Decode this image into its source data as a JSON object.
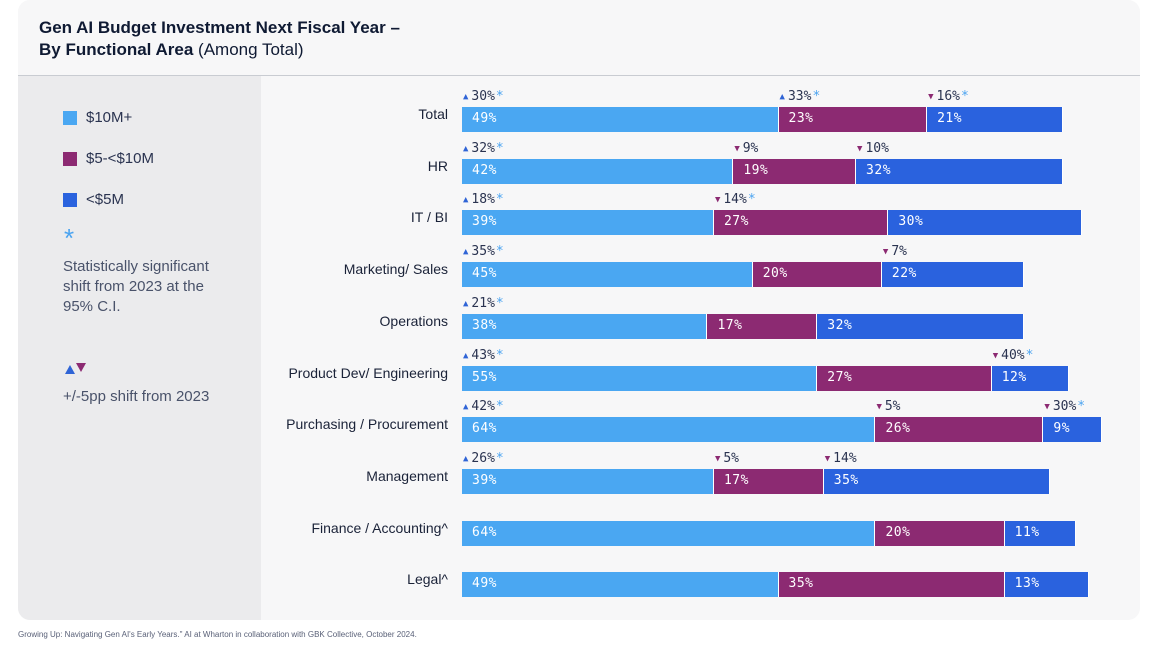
{
  "title": {
    "bold": "Gen AI Budget Investment Next Fiscal Year –",
    "bold2": "By Functional Area",
    "normal": "(Among Total)"
  },
  "legend": {
    "items": [
      {
        "label": "$10M+",
        "color": "#4aa7f2"
      },
      {
        "label": "$5-<$10M",
        "color": "#8c2a72"
      },
      {
        "label": "<$5M",
        "color": "#2a62de"
      }
    ],
    "star_symbol": "*",
    "star_note": "Statistically significant shift from 2023 at the 95% C.I.",
    "shift_note": "+/-5pp shift from 2023"
  },
  "chart_data": {
    "type": "bar",
    "orientation": "horizontal",
    "stacked": true,
    "series": [
      {
        "name": "$10M+",
        "color": "#4aa7f2",
        "values": [
          49,
          42,
          39,
          45,
          38,
          55,
          64,
          39,
          64,
          49
        ]
      },
      {
        "name": "$5-<$10M",
        "color": "#8c2a72",
        "values": [
          23,
          19,
          27,
          20,
          17,
          27,
          26,
          17,
          20,
          35
        ]
      },
      {
        "name": "<$5M",
        "color": "#2a62de",
        "values": [
          21,
          32,
          30,
          22,
          32,
          12,
          9,
          35,
          11,
          13
        ]
      }
    ],
    "categories": [
      "Total",
      "HR",
      "IT / BI",
      "Marketing/ Sales",
      "Operations",
      "Product Dev/ Engineering",
      "Purchasing / Procurement",
      "Management",
      "Finance / Accounting^",
      "Legal^"
    ],
    "annotations": [
      [
        {
          "dir": "up",
          "value": "30%",
          "star": true
        },
        {
          "dir": "up",
          "value": "33%",
          "star": true
        },
        {
          "dir": "down",
          "value": "16%",
          "star": true
        }
      ],
      [
        {
          "dir": "up",
          "value": "32%",
          "star": true
        },
        {
          "dir": "down",
          "value": "9%",
          "star": false
        },
        {
          "dir": "down",
          "value": "10%",
          "star": false
        }
      ],
      [
        {
          "dir": "up",
          "value": "18%",
          "star": true
        },
        {
          "dir": "down",
          "value": "14%",
          "star": true
        },
        null
      ],
      [
        {
          "dir": "up",
          "value": "35%",
          "star": true
        },
        null,
        {
          "dir": "down",
          "value": "7%",
          "star": false
        }
      ],
      [
        {
          "dir": "up",
          "value": "21%",
          "star": true
        },
        null,
        null
      ],
      [
        {
          "dir": "up",
          "value": "43%",
          "star": true
        },
        null,
        {
          "dir": "down",
          "value": "40%",
          "star": true
        }
      ],
      [
        {
          "dir": "up",
          "value": "42%",
          "star": true
        },
        {
          "dir": "down",
          "value": "5%",
          "star": false
        },
        {
          "dir": "down",
          "value": "30%",
          "star": true
        }
      ],
      [
        {
          "dir": "up",
          "value": "26%",
          "star": true
        },
        {
          "dir": "down",
          "value": "5%",
          "star": false
        },
        {
          "dir": "down",
          "value": "14%",
          "star": false
        }
      ],
      [
        null,
        null,
        null
      ],
      [
        null,
        null,
        null
      ]
    ]
  },
  "source": "Growing Up: Navigating Gen AI's Early Years.\" AI at Wharton in collaboration with GBK Collective, October 2024."
}
